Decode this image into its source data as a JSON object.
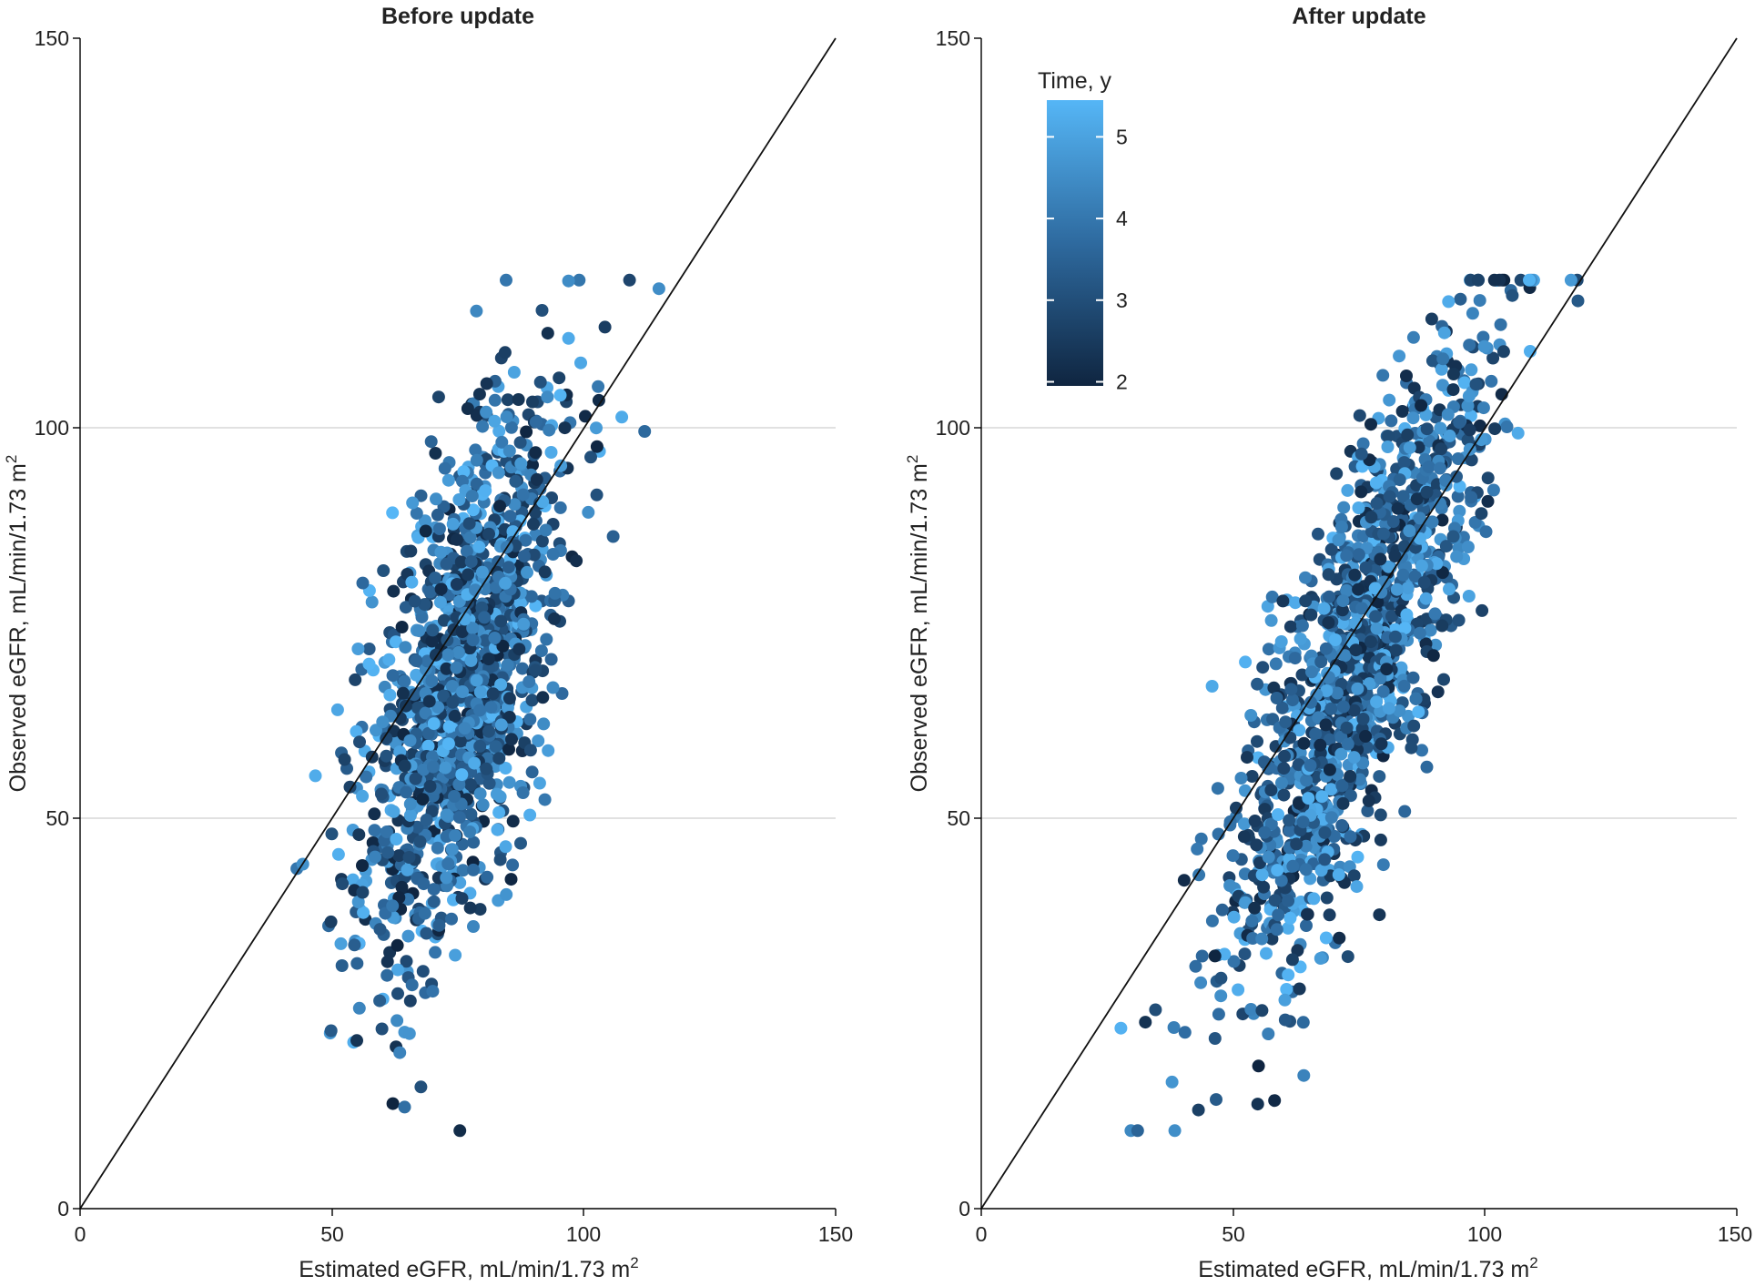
{
  "chart_data": [
    {
      "type": "scatter",
      "title": "Before update",
      "xlabel": "Estimated eGFR, mL/min/1.73 m",
      "xlabel_superscript": "2",
      "ylabel": "Observed eGFR, mL/min/1.73 m",
      "ylabel_superscript": "2",
      "xlim": [
        0,
        150
      ],
      "ylim": [
        0,
        150
      ],
      "xticks": [
        "0",
        "50",
        "100",
        "150"
      ],
      "yticks": [
        "0",
        "50",
        "100",
        "150"
      ],
      "grid": "horizontal",
      "reference_line": "y = x",
      "n_points": 1350,
      "cloud": {
        "x_center": 76,
        "x_spread": 10,
        "y_center": 68,
        "y_spread": 19,
        "slope": 0.6
      }
    },
    {
      "type": "scatter",
      "title": "After update",
      "xlabel": "Estimated eGFR, mL/min/1.73 m",
      "xlabel_superscript": "2",
      "ylabel": "Observed eGFR, mL/min/1.73 m",
      "ylabel_superscript": "2",
      "xlim": [
        0,
        150
      ],
      "ylim": [
        0,
        150
      ],
      "xticks": [
        "0",
        "50",
        "100",
        "150"
      ],
      "yticks": [
        "0",
        "50",
        "100",
        "150"
      ],
      "grid": "horizontal",
      "reference_line": "y = x",
      "n_points": 1350,
      "cloud": {
        "x_center": 74,
        "x_spread": 13,
        "y_center": 69,
        "y_spread": 19,
        "slope": 0.9
      }
    }
  ],
  "legend": {
    "title": "Time, y",
    "placement": "top-left of right panel",
    "ticks": [
      "2",
      "3",
      "4",
      "5"
    ],
    "range": [
      1.95,
      5.45
    ],
    "colors": {
      "low": "#0f2540",
      "mid": "#2e6a9f",
      "high": "#55b6f6"
    }
  }
}
